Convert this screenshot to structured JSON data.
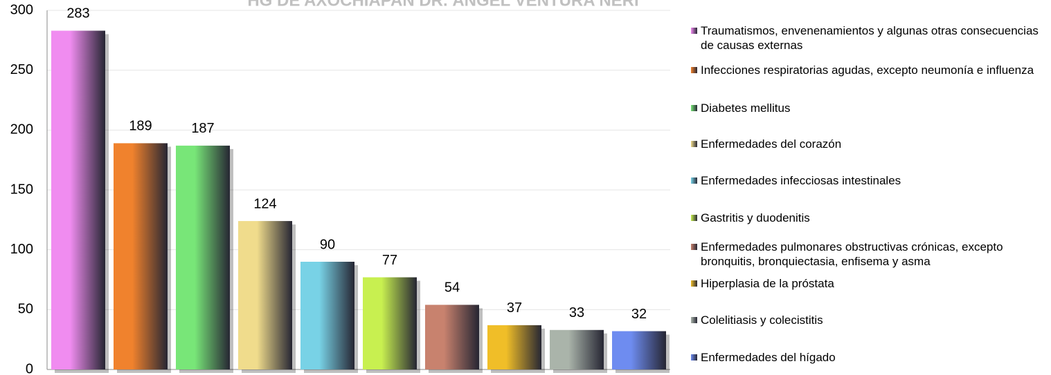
{
  "chart_data": {
    "type": "bar",
    "title": "HG DE AXOCHIAPAN DR. ÁNGEL VENTURA NERI",
    "categories": [
      "Traumatismos, envenenamientos y algunas otras consecuencias de causas externas",
      "Infecciones respiratorias agudas, excepto neumonía e influenza",
      "Diabetes mellitus",
      "Enfermedades del corazón",
      "Enfermedades infecciosas intestinales",
      "Gastritis y duodenitis",
      "Enfermedades pulmonares obstructivas crónicas, excepto bronquitis, bronquiectasia, enfisema y asma",
      "Hiperplasia de la próstata",
      "Colelitiasis y colecistitis",
      "Enfermedades del hígado"
    ],
    "values": [
      283,
      189,
      187,
      124,
      90,
      77,
      54,
      37,
      33,
      32
    ],
    "colors": [
      "#f08cf0",
      "#f0822d",
      "#78e678",
      "#f0dc8c",
      "#78d2e6",
      "#c8f050",
      "#c8826e",
      "#f0be28",
      "#aab4aa",
      "#6e8cf0"
    ],
    "ylim": [
      0,
      300
    ],
    "yticks": [
      0,
      50,
      100,
      150,
      200,
      250,
      300
    ],
    "grid": true,
    "legend": "right"
  }
}
